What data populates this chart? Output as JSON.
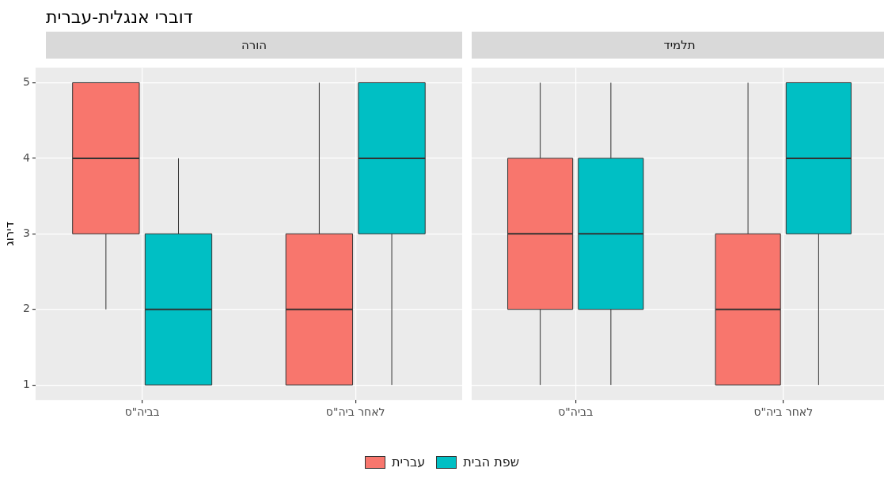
{
  "chart_data": [
    {
      "type": "box",
      "title": "דוברי אנגלית-עברית",
      "subtitle": "הורה",
      "ylabel": "דירוג",
      "categories": [
        "בביה\"ס",
        "לאחר ביה\"ס"
      ],
      "series": [
        {
          "name": "עברית",
          "color": "#f8766d",
          "boxes": [
            {
              "low": 2,
              "q1": 3,
              "median": 4,
              "q3": 5,
              "high": 5
            },
            {
              "low": 1,
              "q1": 1,
              "median": 2,
              "q3": 3,
              "high": 5
            }
          ]
        },
        {
          "name": "שפת הבית",
          "color": "#00bfc4",
          "boxes": [
            {
              "low": 1,
              "q1": 1,
              "median": 2,
              "q3": 3,
              "high": 4
            },
            {
              "low": 1,
              "q1": 3,
              "median": 4,
              "q3": 5,
              "high": 5
            }
          ]
        }
      ],
      "ylim": [
        0.8,
        5.2
      ],
      "yticks": [
        1,
        2,
        3,
        4,
        5
      ],
      "grid": true,
      "legend": "bottom"
    },
    {
      "type": "box",
      "subtitle": "תלמיד",
      "categories": [
        "בביה\"ס",
        "לאחר ביה\"ס"
      ],
      "series": [
        {
          "color": "#f8766d",
          "boxes": [
            {
              "low": 1,
              "q1": 2,
              "median": 3,
              "q3": 4,
              "high": 5
            },
            {
              "low": 1,
              "q1": 1,
              "median": 2,
              "q3": 3,
              "high": 5
            }
          ]
        },
        {
          "color": "#00bfc4",
          "boxes": [
            {
              "low": 1,
              "q1": 2,
              "median": 3,
              "q3": 4,
              "high": 5
            },
            {
              "low": 1,
              "q1": 3,
              "median": 4,
              "q3": 5,
              "high": 5
            }
          ]
        }
      ],
      "ylim": [
        0.8,
        5.2
      ],
      "yticks": [
        1,
        2,
        3,
        4,
        5
      ],
      "grid": true,
      "tick_labels": "x"
    }
  ]
}
